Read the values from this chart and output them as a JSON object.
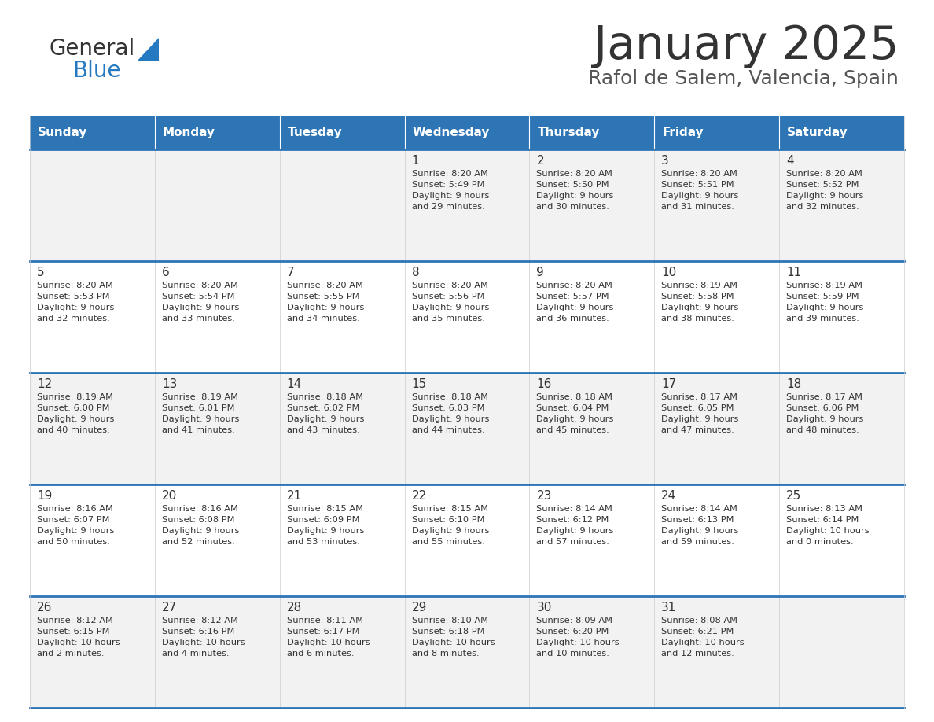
{
  "title": "January 2025",
  "subtitle": "Rafol de Salem, Valencia, Spain",
  "header_bg": "#2E75B6",
  "header_text_color": "#FFFFFF",
  "days_of_week": [
    "Sunday",
    "Monday",
    "Tuesday",
    "Wednesday",
    "Thursday",
    "Friday",
    "Saturday"
  ],
  "row_bg_even": "#F2F2F2",
  "row_bg_odd": "#FFFFFF",
  "cell_border_color": "#2E75B6",
  "text_color": "#333333",
  "calendar_data": [
    [
      {
        "day": "",
        "info": ""
      },
      {
        "day": "",
        "info": ""
      },
      {
        "day": "",
        "info": ""
      },
      {
        "day": "1",
        "info": "Sunrise: 8:20 AM\nSunset: 5:49 PM\nDaylight: 9 hours\nand 29 minutes."
      },
      {
        "day": "2",
        "info": "Sunrise: 8:20 AM\nSunset: 5:50 PM\nDaylight: 9 hours\nand 30 minutes."
      },
      {
        "day": "3",
        "info": "Sunrise: 8:20 AM\nSunset: 5:51 PM\nDaylight: 9 hours\nand 31 minutes."
      },
      {
        "day": "4",
        "info": "Sunrise: 8:20 AM\nSunset: 5:52 PM\nDaylight: 9 hours\nand 32 minutes."
      }
    ],
    [
      {
        "day": "5",
        "info": "Sunrise: 8:20 AM\nSunset: 5:53 PM\nDaylight: 9 hours\nand 32 minutes."
      },
      {
        "day": "6",
        "info": "Sunrise: 8:20 AM\nSunset: 5:54 PM\nDaylight: 9 hours\nand 33 minutes."
      },
      {
        "day": "7",
        "info": "Sunrise: 8:20 AM\nSunset: 5:55 PM\nDaylight: 9 hours\nand 34 minutes."
      },
      {
        "day": "8",
        "info": "Sunrise: 8:20 AM\nSunset: 5:56 PM\nDaylight: 9 hours\nand 35 minutes."
      },
      {
        "day": "9",
        "info": "Sunrise: 8:20 AM\nSunset: 5:57 PM\nDaylight: 9 hours\nand 36 minutes."
      },
      {
        "day": "10",
        "info": "Sunrise: 8:19 AM\nSunset: 5:58 PM\nDaylight: 9 hours\nand 38 minutes."
      },
      {
        "day": "11",
        "info": "Sunrise: 8:19 AM\nSunset: 5:59 PM\nDaylight: 9 hours\nand 39 minutes."
      }
    ],
    [
      {
        "day": "12",
        "info": "Sunrise: 8:19 AM\nSunset: 6:00 PM\nDaylight: 9 hours\nand 40 minutes."
      },
      {
        "day": "13",
        "info": "Sunrise: 8:19 AM\nSunset: 6:01 PM\nDaylight: 9 hours\nand 41 minutes."
      },
      {
        "day": "14",
        "info": "Sunrise: 8:18 AM\nSunset: 6:02 PM\nDaylight: 9 hours\nand 43 minutes."
      },
      {
        "day": "15",
        "info": "Sunrise: 8:18 AM\nSunset: 6:03 PM\nDaylight: 9 hours\nand 44 minutes."
      },
      {
        "day": "16",
        "info": "Sunrise: 8:18 AM\nSunset: 6:04 PM\nDaylight: 9 hours\nand 45 minutes."
      },
      {
        "day": "17",
        "info": "Sunrise: 8:17 AM\nSunset: 6:05 PM\nDaylight: 9 hours\nand 47 minutes."
      },
      {
        "day": "18",
        "info": "Sunrise: 8:17 AM\nSunset: 6:06 PM\nDaylight: 9 hours\nand 48 minutes."
      }
    ],
    [
      {
        "day": "19",
        "info": "Sunrise: 8:16 AM\nSunset: 6:07 PM\nDaylight: 9 hours\nand 50 minutes."
      },
      {
        "day": "20",
        "info": "Sunrise: 8:16 AM\nSunset: 6:08 PM\nDaylight: 9 hours\nand 52 minutes."
      },
      {
        "day": "21",
        "info": "Sunrise: 8:15 AM\nSunset: 6:09 PM\nDaylight: 9 hours\nand 53 minutes."
      },
      {
        "day": "22",
        "info": "Sunrise: 8:15 AM\nSunset: 6:10 PM\nDaylight: 9 hours\nand 55 minutes."
      },
      {
        "day": "23",
        "info": "Sunrise: 8:14 AM\nSunset: 6:12 PM\nDaylight: 9 hours\nand 57 minutes."
      },
      {
        "day": "24",
        "info": "Sunrise: 8:14 AM\nSunset: 6:13 PM\nDaylight: 9 hours\nand 59 minutes."
      },
      {
        "day": "25",
        "info": "Sunrise: 8:13 AM\nSunset: 6:14 PM\nDaylight: 10 hours\nand 0 minutes."
      }
    ],
    [
      {
        "day": "26",
        "info": "Sunrise: 8:12 AM\nSunset: 6:15 PM\nDaylight: 10 hours\nand 2 minutes."
      },
      {
        "day": "27",
        "info": "Sunrise: 8:12 AM\nSunset: 6:16 PM\nDaylight: 10 hours\nand 4 minutes."
      },
      {
        "day": "28",
        "info": "Sunrise: 8:11 AM\nSunset: 6:17 PM\nDaylight: 10 hours\nand 6 minutes."
      },
      {
        "day": "29",
        "info": "Sunrise: 8:10 AM\nSunset: 6:18 PM\nDaylight: 10 hours\nand 8 minutes."
      },
      {
        "day": "30",
        "info": "Sunrise: 8:09 AM\nSunset: 6:20 PM\nDaylight: 10 hours\nand 10 minutes."
      },
      {
        "day": "31",
        "info": "Sunrise: 8:08 AM\nSunset: 6:21 PM\nDaylight: 10 hours\nand 12 minutes."
      },
      {
        "day": "",
        "info": ""
      }
    ]
  ],
  "logo_color_general": "#333333",
  "logo_color_blue": "#2479C0",
  "title_color": "#333333",
  "subtitle_color": "#555555",
  "fig_width": 11.88,
  "fig_height": 9.18,
  "dpi": 100
}
